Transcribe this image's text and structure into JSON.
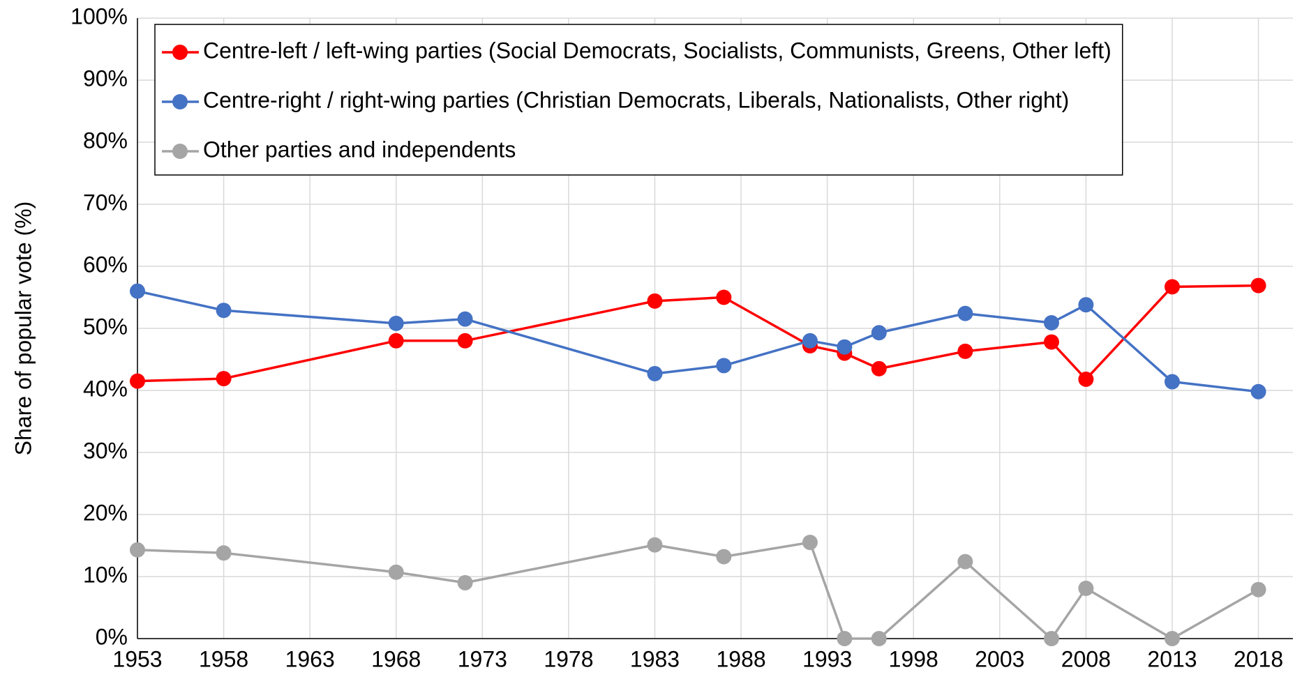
{
  "chart_data": {
    "type": "line",
    "y_label": "Share of popular vote (%)",
    "x": [
      1953,
      1958,
      1968,
      1972,
      1983,
      1987,
      1992,
      1994,
      1996,
      2001,
      2006,
      2008,
      2013,
      2018
    ],
    "series": [
      {
        "name": "Centre-left / left-wing parties (Social Democrats, Socialists, Communists, Greens, Other left)",
        "color": "#ff0000",
        "values": [
          41.5,
          41.9,
          48.0,
          48.0,
          54.4,
          55.0,
          47.2,
          46.0,
          43.5,
          46.3,
          47.8,
          41.8,
          56.7,
          56.9
        ]
      },
      {
        "name": "Centre-right / right-wing parties (Christian Democrats, Liberals, Nationalists, Other right)",
        "color": "#4472c4",
        "values": [
          56.0,
          52.9,
          50.8,
          51.5,
          42.7,
          44.0,
          48.0,
          47.0,
          49.3,
          52.4,
          50.9,
          53.8,
          41.4,
          39.8
        ]
      },
      {
        "name": "Other parties and independents",
        "color": "#a5a5a5",
        "values": [
          14.3,
          13.8,
          10.7,
          9.0,
          15.1,
          13.2,
          15.5,
          0,
          0,
          12.4,
          0,
          8.1,
          0,
          7.9
        ]
      }
    ],
    "xlim": [
      1953,
      2020
    ],
    "xticks": [
      1953,
      1958,
      1963,
      1968,
      1973,
      1978,
      1983,
      1988,
      1993,
      1998,
      2003,
      2008,
      2013,
      2018
    ],
    "ylim": [
      0,
      100
    ],
    "yticks": [
      {
        "value": 0,
        "label": "0%"
      },
      {
        "value": 10,
        "label": "10%"
      },
      {
        "value": 20,
        "label": "20%"
      },
      {
        "value": 30,
        "label": "30%"
      },
      {
        "value": 40,
        "label": "40%"
      },
      {
        "value": 50,
        "label": "50%"
      },
      {
        "value": 60,
        "label": "60%"
      },
      {
        "value": 70,
        "label": "70%"
      },
      {
        "value": 80,
        "label": "80%"
      },
      {
        "value": 90,
        "label": "90%"
      },
      {
        "value": 100,
        "label": "100%"
      }
    ],
    "grid": true,
    "legend": "top-left"
  }
}
